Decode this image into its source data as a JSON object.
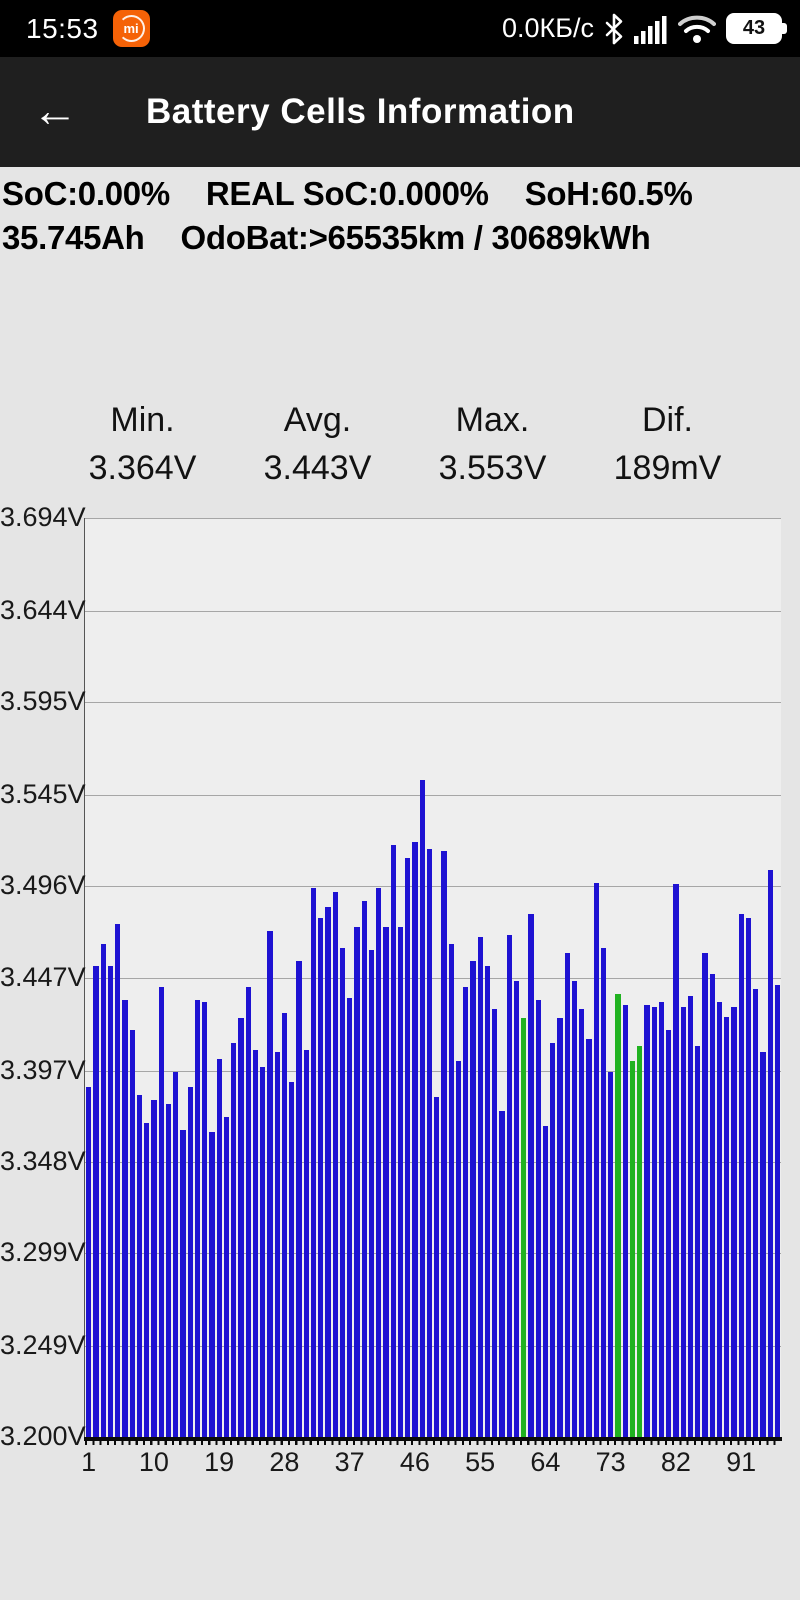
{
  "status_bar": {
    "time": "15:53",
    "app_icon_label": "mi",
    "net_speed": "0.0КБ/с",
    "battery_percent": "43"
  },
  "app_bar": {
    "back_glyph": "←",
    "title": "Battery Cells Information"
  },
  "info": {
    "soc": "SoC:0.00%",
    "real_soc": "REAL SoC:0.000%",
    "soh": "SoH:60.5%",
    "capacity": "35.745Ah",
    "odo": "OdoBat:>65535km / 30689kWh"
  },
  "stats": [
    {
      "label": "Min.",
      "value": "3.364V"
    },
    {
      "label": "Avg.",
      "value": "3.443V"
    },
    {
      "label": "Max.",
      "value": "3.553V"
    },
    {
      "label": "Dif.",
      "value": "189mV"
    }
  ],
  "chart_data": {
    "type": "bar",
    "title": "",
    "xlabel": "",
    "ylabel": "",
    "ylim": [
      3.2,
      3.694
    ],
    "grid": true,
    "ytick_labels": [
      "3.694V",
      "3.644V",
      "3.595V",
      "3.545V",
      "3.496V",
      "3.447V",
      "3.397V",
      "3.348V",
      "3.299V",
      "3.249V",
      "3.200V"
    ],
    "ytick_values": [
      3.694,
      3.644,
      3.595,
      3.545,
      3.496,
      3.447,
      3.397,
      3.348,
      3.299,
      3.249,
      3.2
    ],
    "xticks": [
      1,
      10,
      19,
      28,
      37,
      46,
      55,
      64,
      73,
      82,
      91
    ],
    "cell_count": 96,
    "values": [
      3.388,
      3.453,
      3.465,
      3.453,
      3.476,
      3.435,
      3.419,
      3.384,
      3.369,
      3.381,
      3.442,
      3.379,
      3.396,
      3.365,
      3.388,
      3.435,
      3.434,
      3.364,
      3.403,
      3.372,
      3.412,
      3.425,
      3.442,
      3.408,
      3.399,
      3.472,
      3.407,
      3.428,
      3.391,
      3.456,
      3.408,
      3.495,
      3.479,
      3.485,
      3.493,
      3.463,
      3.436,
      3.474,
      3.488,
      3.462,
      3.495,
      3.474,
      3.518,
      3.474,
      3.511,
      3.52,
      3.553,
      3.516,
      3.383,
      3.515,
      3.465,
      3.402,
      3.442,
      3.456,
      3.469,
      3.453,
      3.43,
      3.375,
      3.47,
      3.445,
      3.425,
      3.481,
      3.435,
      3.367,
      3.412,
      3.425,
      3.46,
      3.445,
      3.43,
      3.414,
      3.498,
      3.463,
      3.396,
      3.438,
      3.432,
      3.402,
      3.41,
      3.432,
      3.431,
      3.434,
      3.419,
      3.497,
      3.431,
      3.437,
      3.41,
      3.46,
      3.449,
      3.434,
      3.426,
      3.431,
      3.481,
      3.479,
      3.441,
      3.407,
      3.505,
      3.443
    ],
    "green_cells": [
      61,
      74,
      76,
      77
    ],
    "bar_color": "#1e12d2",
    "green_color": "#20b220"
  }
}
